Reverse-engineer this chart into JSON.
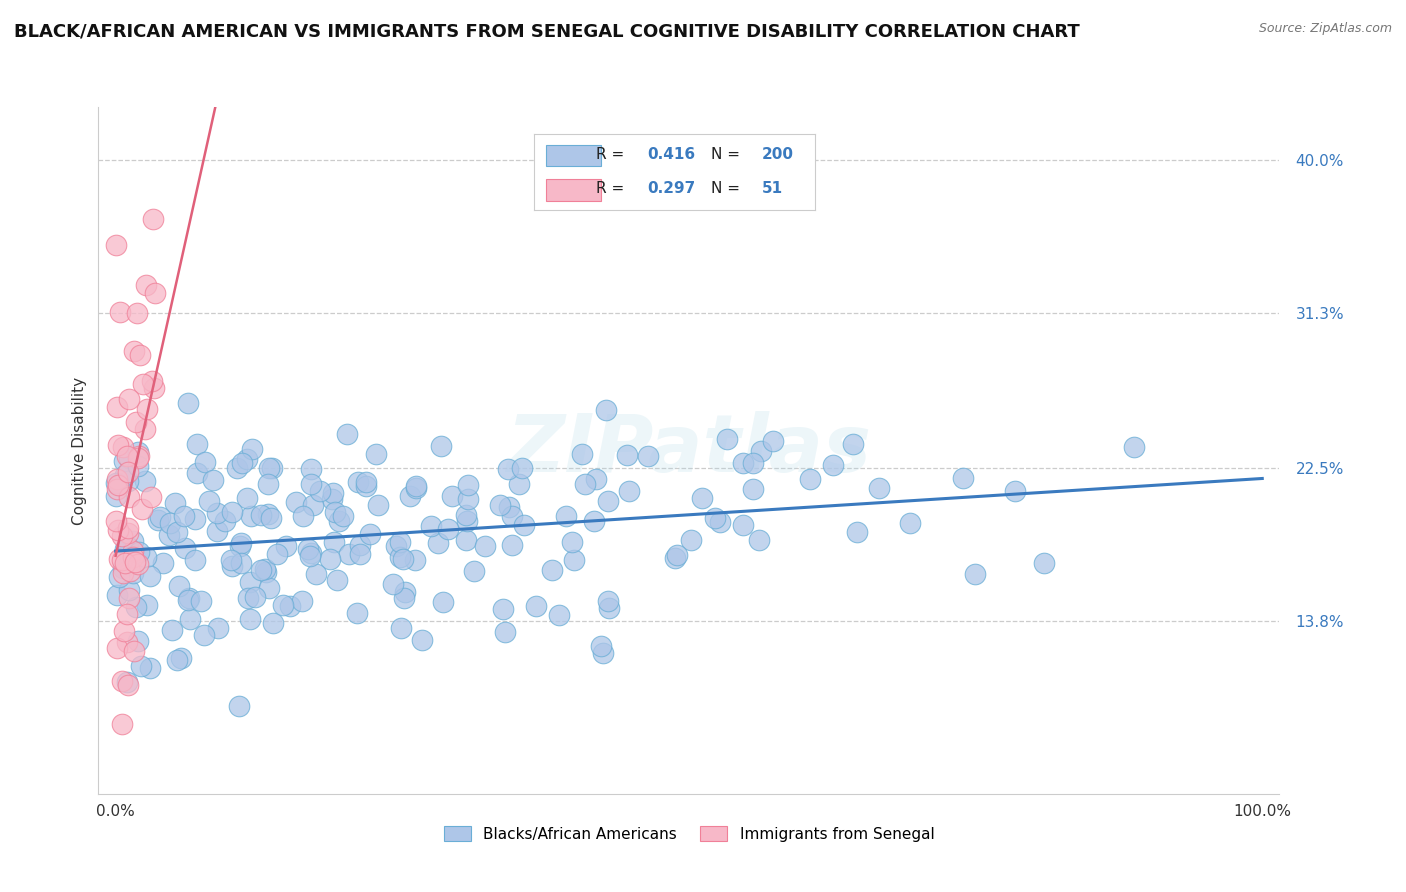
{
  "title": "BLACK/AFRICAN AMERICAN VS IMMIGRANTS FROM SENEGAL COGNITIVE DISABILITY CORRELATION CHART",
  "source": "Source: ZipAtlas.com",
  "ylabel": "Cognitive Disability",
  "blue_R": 0.416,
  "blue_N": 200,
  "pink_R": 0.297,
  "pink_N": 51,
  "blue_color": "#aec6e8",
  "blue_edge_color": "#6aaed6",
  "blue_line_color": "#3a7abf",
  "pink_color": "#f7b8c8",
  "pink_edge_color": "#f08098",
  "pink_line_color": "#e0607a",
  "watermark": "ZIPatlas",
  "xmin": 0.0,
  "xmax": 1.0,
  "ymin": 0.04,
  "ymax": 0.43,
  "ytick_vals": [
    0.138,
    0.225,
    0.313,
    0.4
  ],
  "ytick_labels": [
    "13.8%",
    "22.5%",
    "31.3%",
    "40.0%"
  ],
  "xtick_vals": [
    0.0,
    1.0
  ],
  "xtick_labels": [
    "0.0%",
    "100.0%"
  ],
  "background_color": "#ffffff",
  "grid_color": "#cccccc",
  "title_fontsize": 13,
  "tick_fontsize": 11,
  "legend_label_color": "#3a7abf",
  "legend_text_color": "#222222"
}
